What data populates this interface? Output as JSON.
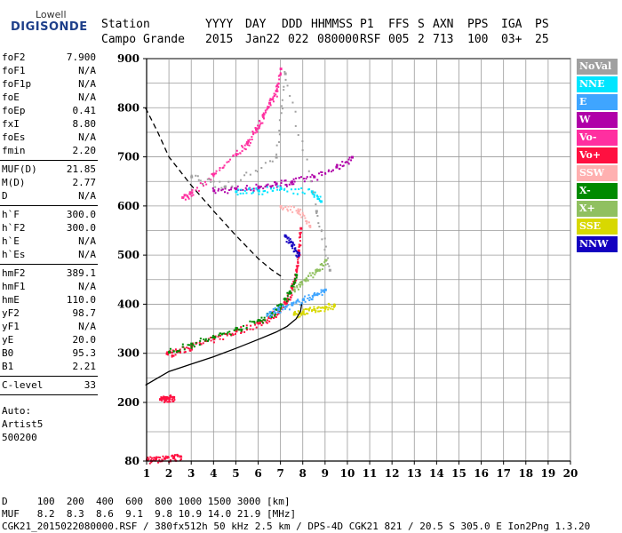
{
  "logo": {
    "line1": "Lowell",
    "line2": "DIGISONDE"
  },
  "header": {
    "labels": [
      "Station",
      "YYYY",
      "DAY",
      "DDD",
      "HHMMSS",
      "P1",
      "FFS",
      "S",
      "AXN",
      "PPS",
      "IGA",
      "PS"
    ],
    "values": [
      "Campo Grande",
      "2015",
      "Jan22",
      "022",
      "080000",
      "RSF",
      "005",
      "2",
      "713",
      "100",
      "03+",
      "25"
    ]
  },
  "params": {
    "group1": [
      {
        "k": "foF2",
        "v": "7.900"
      },
      {
        "k": "foF1",
        "v": "N/A"
      },
      {
        "k": "foF1p",
        "v": "N/A"
      },
      {
        "k": "foE",
        "v": "N/A"
      },
      {
        "k": "foEp",
        "v": "0.41"
      },
      {
        "k": "fxI",
        "v": "8.80"
      },
      {
        "k": "foEs",
        "v": "N/A"
      },
      {
        "k": "fmin",
        "v": "2.20"
      }
    ],
    "group2": [
      {
        "k": "MUF(D)",
        "v": "21.85"
      },
      {
        "k": "M(D)",
        "v": "2.77"
      },
      {
        "k": "D",
        "v": "N/A"
      }
    ],
    "group3": [
      {
        "k": "h`F",
        "v": "300.0"
      },
      {
        "k": "h`F2",
        "v": "300.0"
      },
      {
        "k": "h`E",
        "v": "N/A"
      },
      {
        "k": "h`Es",
        "v": "N/A"
      }
    ],
    "group4": [
      {
        "k": "hmF2",
        "v": "389.1"
      },
      {
        "k": "hmF1",
        "v": "N/A"
      },
      {
        "k": "hmE",
        "v": "110.0"
      },
      {
        "k": "yF2",
        "v": "98.7"
      },
      {
        "k": "yF1",
        "v": "N/A"
      },
      {
        "k": "yE",
        "v": "20.0"
      },
      {
        "k": "B0",
        "v": "95.3"
      },
      {
        "k": "B1",
        "v": "2.21"
      }
    ],
    "group5": [
      {
        "k": "C-level",
        "v": "33"
      }
    ],
    "auto_label": "Auto:",
    "artist": "Artist5",
    "artist_code": "500200"
  },
  "legend": [
    {
      "label": "NoVal",
      "color": "#a0a0a0"
    },
    {
      "label": "NNE",
      "color": "#00e5ff"
    },
    {
      "label": "E",
      "color": "#3fa5ff"
    },
    {
      "label": "W",
      "color": "#b000a8"
    },
    {
      "label": "Vo-",
      "color": "#ff2fa0"
    },
    {
      "label": "Vo+",
      "color": "#ff1040"
    },
    {
      "label": "SSW",
      "color": "#ffb0b0"
    },
    {
      "label": "X-",
      "color": "#008a00"
    },
    {
      "label": "X+",
      "color": "#90c060"
    },
    {
      "label": "SSE",
      "color": "#d8d800"
    },
    {
      "label": "NNW",
      "color": "#1400c0"
    }
  ],
  "chart_data": {
    "type": "scatter",
    "x_ticks": [
      "1",
      "2",
      "3",
      "4",
      "5",
      "6",
      "7",
      "8",
      "9",
      "10",
      "11",
      "12",
      "13",
      "14",
      "15",
      "16",
      "17",
      "18",
      "19",
      "20"
    ],
    "y_ticks": [
      "80",
      "200",
      "300",
      "400",
      "500",
      "600",
      "700",
      "800",
      "900"
    ],
    "xlim": [
      1,
      20
    ],
    "ylim_km": [
      80,
      900
    ],
    "grid": true,
    "legend_position": "right",
    "y_axis_segments_km": [
      [
        80,
        200
      ],
      [
        200,
        900
      ]
    ],
    "dashed_profile": [
      [
        0.95,
        800
      ],
      [
        1.5,
        750
      ],
      [
        2,
        700
      ],
      [
        3,
        642
      ],
      [
        4,
        590
      ],
      [
        5,
        540
      ],
      [
        6,
        493
      ],
      [
        6.6,
        470
      ],
      [
        7.0,
        458
      ],
      [
        7.1,
        450
      ]
    ],
    "solid_profile": [
      [
        0.95,
        235
      ],
      [
        1.5,
        250
      ],
      [
        2,
        263
      ],
      [
        3,
        278
      ],
      [
        4,
        293
      ],
      [
        5,
        310
      ],
      [
        6,
        328
      ],
      [
        6.8,
        343
      ],
      [
        7.3,
        355
      ],
      [
        7.7,
        370
      ],
      [
        7.9,
        385
      ],
      [
        7.95,
        400
      ]
    ],
    "traces": [
      {
        "name": "W",
        "color": "#b000a8",
        "points": [
          [
            4.0,
            632
          ],
          [
            5.0,
            636
          ],
          [
            6.0,
            640
          ],
          [
            6.8,
            646
          ],
          [
            7.5,
            650
          ],
          [
            8.5,
            660
          ],
          [
            9.5,
            680
          ],
          [
            10.2,
            700
          ]
        ]
      },
      {
        "name": "Vo+",
        "color": "#ff1040",
        "points": [
          [
            1.9,
            300
          ],
          [
            2.4,
            305
          ],
          [
            3.0,
            315
          ],
          [
            4.0,
            330
          ],
          [
            5.0,
            346
          ],
          [
            6.0,
            362
          ],
          [
            6.5,
            374
          ],
          [
            7.0,
            392
          ],
          [
            7.3,
            410
          ],
          [
            7.5,
            435
          ],
          [
            7.7,
            470
          ],
          [
            7.8,
            510
          ],
          [
            7.9,
            555
          ]
        ]
      },
      {
        "name": "Vo-",
        "color": "#ff2fa0",
        "points": [
          [
            2.6,
            618
          ],
          [
            3.0,
            628
          ],
          [
            4.0,
            666
          ],
          [
            5.0,
            706
          ],
          [
            5.5,
            730
          ],
          [
            5.9,
            758
          ],
          [
            6.2,
            785
          ],
          [
            6.5,
            810
          ],
          [
            6.8,
            835
          ],
          [
            7.0,
            880
          ]
        ]
      },
      {
        "name": "X-",
        "color": "#008a00",
        "points": [
          [
            2.0,
            303
          ],
          [
            3.0,
            320
          ],
          [
            4.0,
            334
          ],
          [
            5.0,
            350
          ],
          [
            6.0,
            368
          ],
          [
            6.6,
            382
          ],
          [
            7.0,
            400
          ],
          [
            7.4,
            425
          ],
          [
            7.7,
            460
          ]
        ]
      },
      {
        "name": "E",
        "color": "#3fa5ff",
        "points": [
          [
            6.4,
            380
          ],
          [
            6.9,
            390
          ],
          [
            7.5,
            400
          ],
          [
            8.0,
            410
          ],
          [
            8.5,
            420
          ],
          [
            9.0,
            430
          ]
        ]
      },
      {
        "name": "SSE",
        "color": "#d8d800",
        "points": [
          [
            7.6,
            380
          ],
          [
            8.0,
            385
          ],
          [
            8.5,
            390
          ],
          [
            9.0,
            395
          ],
          [
            9.4,
            398
          ]
        ]
      },
      {
        "name": "NNE",
        "color": "#00e5ff",
        "points": [
          [
            5.0,
            630
          ],
          [
            6.0,
            632
          ],
          [
            7.0,
            636
          ],
          [
            8.4,
            630
          ],
          [
            8.8,
            610
          ]
        ]
      },
      {
        "name": "NoVal",
        "color": "#a0a0a0",
        "points": [
          [
            3.0,
            660
          ],
          [
            4.5,
            640
          ],
          [
            6.8,
            700
          ],
          [
            7.2,
            870
          ],
          [
            8.6,
            590
          ],
          [
            9.2,
            470
          ]
        ]
      },
      {
        "name": "NNW",
        "color": "#1400c0",
        "points": [
          [
            7.2,
            540
          ],
          [
            7.5,
            520
          ],
          [
            7.8,
            500
          ]
        ]
      },
      {
        "name": "SSW",
        "color": "#ffb0b0",
        "points": [
          [
            7.0,
            600
          ],
          [
            7.8,
            590
          ],
          [
            8.3,
            560
          ]
        ]
      },
      {
        "name": "X+",
        "color": "#90c060",
        "points": [
          [
            7.6,
            430
          ],
          [
            8.1,
            450
          ],
          [
            8.6,
            470
          ],
          [
            9.0,
            490
          ]
        ]
      },
      {
        "name": "Vo+",
        "color": "#ff1040",
        "points": [
          [
            1.6,
            207
          ],
          [
            1.8,
            207
          ],
          [
            2.0,
            209
          ],
          [
            2.2,
            211
          ]
        ]
      },
      {
        "name": "Vo+",
        "color": "#ff1040",
        "points": [
          [
            1.0,
            83
          ],
          [
            1.4,
            85
          ],
          [
            1.8,
            86
          ],
          [
            2.2,
            88
          ],
          [
            2.5,
            90
          ]
        ]
      }
    ]
  },
  "bottom": {
    "d_line": "D     100  200  400  600  800 1000 1500 3000 [km]",
    "muf_line": "MUF   8.2  8.3  8.6  9.1  9.8 10.9 14.0 21.9 [MHz]",
    "file_line": "CGK21_2015022080000.RSF / 380fx512h 50 kHz 2.5 km / DPS-4D CGK21 821 / 20.5 S 305.0 E Ion2Png 1.3.20"
  }
}
